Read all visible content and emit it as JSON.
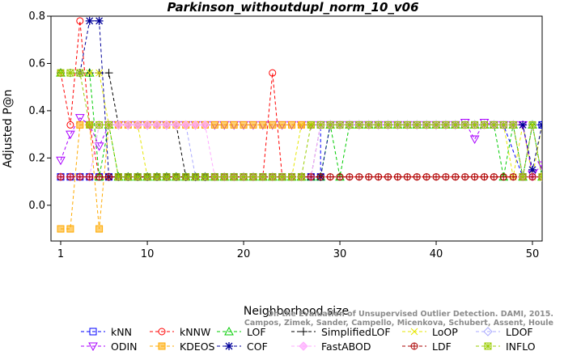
{
  "chart_data": {
    "type": "line",
    "title": "Parkinson_withoutdupl_norm_10_v06",
    "xlabel": "Neighborhood size",
    "ylabel": "Adjusted P@n",
    "xlim": [
      1,
      52
    ],
    "ylim": [
      -0.12,
      0.8
    ],
    "xticks": [
      1,
      10,
      20,
      30,
      40,
      50
    ],
    "yticks": [
      0.0,
      0.2,
      0.4,
      0.6,
      0.8
    ],
    "grid": false,
    "legend_position": "bottom",
    "watermark": [
      "Campos, Zimek, Sander, Campello, Micenkova, Schubert, Assent, Houle",
      "On the Evaluation of Unsupervised Outlier Detection. DAMI, 2015."
    ],
    "series": [
      {
        "name": "kNN",
        "color": "#0000ff",
        "marker": "square",
        "segments": [
          {
            "x": [
              1,
              28
            ],
            "y": [
              0.12,
              0.12
            ]
          },
          {
            "x": [
              28,
              47
            ],
            "y": [
              0.34,
              0.34
            ]
          },
          {
            "x": [
              49
            ],
            "y": [
              0.12
            ]
          },
          {
            "x": [
              50,
              52
            ],
            "y": [
              0.34,
              0.34
            ]
          }
        ]
      },
      {
        "name": "kNNW",
        "color": "#ff0000",
        "marker": "circle",
        "segments": [
          {
            "x": [
              1,
              2,
              3,
              4
            ],
            "y": [
              0.56,
              0.34,
              0.78,
              0.34
            ]
          },
          {
            "x": [
              5,
              22
            ],
            "y": [
              0.12,
              0.12
            ]
          },
          {
            "x": [
              23,
              24
            ],
            "y": [
              0.56,
              0.12
            ]
          },
          {
            "x": [
              25,
              52
            ],
            "y": [
              0.12,
              0.12
            ]
          }
        ]
      },
      {
        "name": "LOF",
        "color": "#00cc00",
        "marker": "triangle-up",
        "segments": [
          {
            "x": [
              1,
              4,
              5,
              6
            ],
            "y": [
              0.56,
              0.56,
              0.12,
              0.34
            ]
          },
          {
            "x": [
              7,
              28
            ],
            "y": [
              0.12,
              0.12
            ]
          },
          {
            "x": [
              29,
              30,
              31
            ],
            "y": [
              0.34,
              0.12,
              0.34
            ]
          },
          {
            "x": [
              32,
              46
            ],
            "y": [
              0.34,
              0.34
            ]
          },
          {
            "x": [
              47,
              48,
              49,
              50,
              51,
              52
            ],
            "y": [
              0.12,
              0.34,
              0.12,
              0.34,
              0.12,
              -0.02
            ]
          }
        ]
      },
      {
        "name": "SimplifiedLOF",
        "color": "#000000",
        "marker": "plus",
        "segments": [
          {
            "x": [
              1,
              6
            ],
            "y": [
              0.56,
              0.56
            ]
          },
          {
            "x": [
              7,
              13
            ],
            "y": [
              0.34,
              0.34
            ]
          },
          {
            "x": [
              14,
              27
            ],
            "y": [
              0.12,
              0.12
            ]
          },
          {
            "x": [
              28,
              48
            ],
            "y": [
              0.34,
              0.34
            ]
          },
          {
            "x": [
              49,
              50,
              51,
              52
            ],
            "y": [
              0.12,
              0.34,
              0.12,
              0.12
            ]
          }
        ]
      },
      {
        "name": "LoOP",
        "color": "#e6e600",
        "marker": "x",
        "segments": [
          {
            "x": [
              1,
              5
            ],
            "y": [
              0.56,
              0.56
            ]
          },
          {
            "x": [
              6,
              9
            ],
            "y": [
              0.34,
              0.34
            ]
          },
          {
            "x": [
              10,
              25
            ],
            "y": [
              0.12,
              0.12
            ]
          },
          {
            "x": [
              26,
              47
            ],
            "y": [
              0.34,
              0.34
            ]
          },
          {
            "x": [
              48,
              49,
              50,
              51,
              52
            ],
            "y": [
              0.12,
              0.34,
              0.12,
              0.34,
              0.12
            ]
          }
        ]
      },
      {
        "name": "LDOF",
        "color": "#aaaaff",
        "marker": "diamond",
        "segments": [
          {
            "x": [
              1,
              4
            ],
            "y": [
              0.12,
              0.12
            ]
          },
          {
            "x": [
              5,
              14
            ],
            "y": [
              0.34,
              0.34
            ]
          },
          {
            "x": [
              15,
              27
            ],
            "y": [
              0.12,
              0.12
            ]
          },
          {
            "x": [
              28,
              48
            ],
            "y": [
              0.34,
              0.34
            ]
          },
          {
            "x": [
              49,
              50,
              51,
              52
            ],
            "y": [
              0.12,
              0.34,
              0.12,
              0.34
            ]
          }
        ]
      },
      {
        "name": "ODIN",
        "color": "#aa00ff",
        "marker": "triangle-down",
        "segments": [
          {
            "x": [
              1,
              2,
              3,
              4,
              5,
              6
            ],
            "y": [
              0.19,
              0.3,
              0.37,
              0.34,
              0.25,
              0.34
            ]
          },
          {
            "x": [
              7,
              27
            ],
            "y": [
              0.34,
              0.34
            ]
          },
          {
            "x": [
              28,
              42
            ],
            "y": [
              0.34,
              0.34
            ]
          },
          {
            "x": [
              43,
              44,
              45,
              46,
              47,
              48,
              49,
              50,
              51,
              52
            ],
            "y": [
              0.35,
              0.28,
              0.35,
              0.34,
              0.34,
              0.34,
              0.34,
              0.13,
              0.17,
              0.0
            ]
          }
        ]
      },
      {
        "name": "KDEOS",
        "color": "#ffaa00",
        "marker": "square-filled",
        "segments": [
          {
            "x": [
              1,
              2,
              3,
              4,
              5,
              6
            ],
            "y": [
              -0.1,
              -0.1,
              0.34,
              0.34,
              -0.1,
              0.34
            ]
          },
          {
            "x": [
              7,
              27
            ],
            "y": [
              0.34,
              0.34
            ]
          }
        ]
      },
      {
        "name": "COF",
        "color": "#000099",
        "marker": "asterisk",
        "segments": [
          {
            "x": [
              3,
              4,
              5
            ],
            "y": [
              0.56,
              0.78,
              0.78
            ]
          },
          {
            "x": [
              6,
              28
            ],
            "y": [
              0.12,
              0.12
            ]
          },
          {
            "x": [
              29,
              47
            ],
            "y": [
              0.34,
              0.34
            ]
          },
          {
            "x": [
              48,
              49,
              50,
              51
            ],
            "y": [
              0.34,
              0.34,
              0.15,
              0.34
            ]
          }
        ]
      },
      {
        "name": "FastABOD",
        "color": "#ffaaff",
        "marker": "diamond-filled",
        "segments": [
          {
            "x": [
              1,
              4
            ],
            "y": [
              0.12,
              0.12
            ]
          },
          {
            "x": [
              5,
              16
            ],
            "y": [
              0.34,
              0.34
            ]
          },
          {
            "x": [
              17,
              27
            ],
            "y": [
              0.12,
              0.12
            ]
          },
          {
            "x": [
              28,
              48
            ],
            "y": [
              0.34,
              0.34
            ]
          },
          {
            "x": [
              49,
              52
            ],
            "y": [
              0.12,
              0.12
            ]
          }
        ]
      },
      {
        "name": "LDF",
        "color": "#aa0000",
        "marker": "circle-plus",
        "segments": [
          {
            "x": [
              1,
              4
            ],
            "y": [
              0.12,
              0.12
            ]
          },
          {
            "x": [
              5,
              27
            ],
            "y": [
              0.12,
              0.12
            ]
          },
          {
            "x": [
              28,
              52
            ],
            "y": [
              0.12,
              0.12
            ]
          }
        ]
      },
      {
        "name": "INFLO",
        "color": "#99cc00",
        "marker": "star-box",
        "segments": [
          {
            "x": [
              1,
              3
            ],
            "y": [
              0.56,
              0.56
            ]
          },
          {
            "x": [
              4,
              5,
              6
            ],
            "y": [
              0.34,
              0.34,
              0.34
            ]
          },
          {
            "x": [
              7,
              26
            ],
            "y": [
              0.12,
              0.12
            ]
          },
          {
            "x": [
              27,
              48
            ],
            "y": [
              0.34,
              0.34
            ]
          },
          {
            "x": [
              49,
              50,
              51,
              52
            ],
            "y": [
              0.12,
              0.34,
              0.12,
              -0.02
            ]
          }
        ]
      }
    ]
  }
}
